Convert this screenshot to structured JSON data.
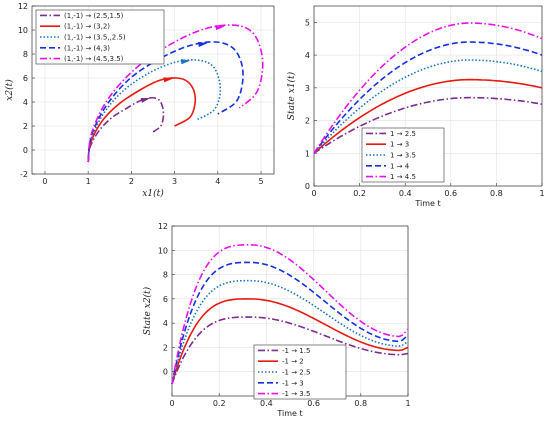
{
  "chart_data": [
    {
      "id": "phase",
      "type": "line",
      "title": "",
      "xlabel": "x1(t)",
      "ylabel": "x2(t)",
      "xlim": [
        -0.3,
        5.3
      ],
      "ylim": [
        -2,
        12
      ],
      "xticks": [
        "0",
        "1",
        "2",
        "3",
        "4",
        "5"
      ],
      "yticks": [
        "-2",
        "0",
        "2",
        "4",
        "6",
        "8",
        "10",
        "12"
      ],
      "grid": true,
      "legend_position": "top-left",
      "series": [
        {
          "name": "(1,-1) → (2.5,1.5)",
          "color": "#7b2d8e",
          "style": "dashdot",
          "x": [
            1.0,
            1.04,
            1.25,
            1.55,
            1.9,
            2.2,
            2.45,
            2.63,
            2.72,
            2.74,
            2.68,
            2.5
          ],
          "y": [
            -1.0,
            0.2,
            1.6,
            2.7,
            3.5,
            4.1,
            4.35,
            4.2,
            3.6,
            2.8,
            2.0,
            1.5
          ]
        },
        {
          "name": "(1,-1) → (3,2)",
          "color": "#e8190f",
          "style": "solid",
          "x": [
            1.0,
            1.05,
            1.3,
            1.7,
            2.2,
            2.65,
            3.05,
            3.3,
            3.45,
            3.47,
            3.35,
            3.0
          ],
          "y": [
            -1.0,
            0.5,
            2.3,
            3.8,
            5.0,
            5.8,
            6.0,
            5.7,
            4.9,
            3.8,
            2.7,
            2.0
          ]
        },
        {
          "name": "(1,-1) → (3.5,,2.5)",
          "color": "#1a72c0",
          "style": "dotted",
          "x": [
            1.0,
            1.06,
            1.35,
            1.8,
            2.4,
            3.0,
            3.5,
            3.85,
            4.02,
            4.05,
            3.9,
            3.5
          ],
          "y": [
            -1.0,
            0.8,
            3.0,
            4.9,
            6.4,
            7.3,
            7.5,
            7.1,
            6.0,
            4.6,
            3.3,
            2.5
          ]
        },
        {
          "name": "(1,-1) → (4,3)",
          "color": "#1530e0",
          "style": "dashed",
          "x": [
            1.0,
            1.07,
            1.4,
            1.95,
            2.65,
            3.35,
            3.95,
            4.35,
            4.55,
            4.57,
            4.42,
            4.0
          ],
          "y": [
            -1.0,
            1.1,
            3.6,
            5.9,
            7.6,
            8.7,
            9.0,
            8.5,
            7.2,
            5.6,
            4.0,
            3.0
          ]
        },
        {
          "name": "(1,-1) → (4.5,3.5)",
          "color": "#ea10ea",
          "style": "dashdot",
          "x": [
            1.0,
            1.08,
            1.45,
            2.1,
            2.9,
            3.7,
            4.4,
            4.8,
            5.0,
            5.03,
            4.88,
            4.5
          ],
          "y": [
            -1.0,
            1.4,
            4.2,
            6.8,
            8.8,
            10.1,
            10.4,
            9.8,
            8.3,
            6.5,
            4.7,
            3.5
          ]
        }
      ]
    },
    {
      "id": "x1t",
      "type": "line",
      "title": "",
      "xlabel": "Time t",
      "ylabel": "State x1(t)",
      "xlim": [
        0,
        1
      ],
      "ylim": [
        0,
        5.5
      ],
      "xticks": [
        "0",
        "0.2",
        "0.4",
        "0.6",
        "0.8",
        "1"
      ],
      "yticks": [
        "0",
        "1",
        "2",
        "3",
        "4",
        "5"
      ],
      "grid": true,
      "legend_position": "bottom-center",
      "series": [
        {
          "name": "1 → 2.5",
          "color": "#7b2d8e",
          "style": "dashdot",
          "peak": 2.7,
          "end": 2.5
        },
        {
          "name": "1 → 3",
          "color": "#e8190f",
          "style": "solid",
          "peak": 3.25,
          "end": 3.0
        },
        {
          "name": "1 → 3.5",
          "color": "#1a72c0",
          "style": "dotted",
          "peak": 3.85,
          "end": 3.5
        },
        {
          "name": "1 → 4",
          "color": "#1530e0",
          "style": "dashed",
          "peak": 4.4,
          "end": 4.0
        },
        {
          "name": "1 → 4.5",
          "color": "#ea10ea",
          "style": "dashdot",
          "peak": 4.98,
          "end": 4.5
        }
      ]
    },
    {
      "id": "x2t",
      "type": "line",
      "title": "",
      "xlabel": "Time t",
      "ylabel": "State x2(t)",
      "xlim": [
        0,
        1
      ],
      "ylim": [
        -2,
        12
      ],
      "xticks": [
        "0",
        "0.2",
        "0.4",
        "0.6",
        "0.8",
        "1"
      ],
      "yticks": [
        "0",
        "2",
        "4",
        "6",
        "8",
        "10",
        "12"
      ],
      "grid": true,
      "legend_position": "bottom-center",
      "series": [
        {
          "name": "-1 → 1.5",
          "color": "#7b2d8e",
          "style": "dashdot",
          "peak": 4.5,
          "min": 1.4,
          "end": 1.5
        },
        {
          "name": "-1 → 2",
          "color": "#e8190f",
          "style": "solid",
          "peak": 6.0,
          "min": 1.75,
          "end": 2.0
        },
        {
          "name": "-1 → 2.5",
          "color": "#1a72c0",
          "style": "dotted",
          "peak": 7.5,
          "min": 2.1,
          "end": 2.5
        },
        {
          "name": "-1 → 3",
          "color": "#1530e0",
          "style": "dashed",
          "peak": 9.0,
          "min": 2.5,
          "end": 3.0
        },
        {
          "name": "-1 → 3.5",
          "color": "#ea10ea",
          "style": "dashdot",
          "peak": 10.45,
          "min": 2.9,
          "end": 3.5
        }
      ]
    }
  ]
}
